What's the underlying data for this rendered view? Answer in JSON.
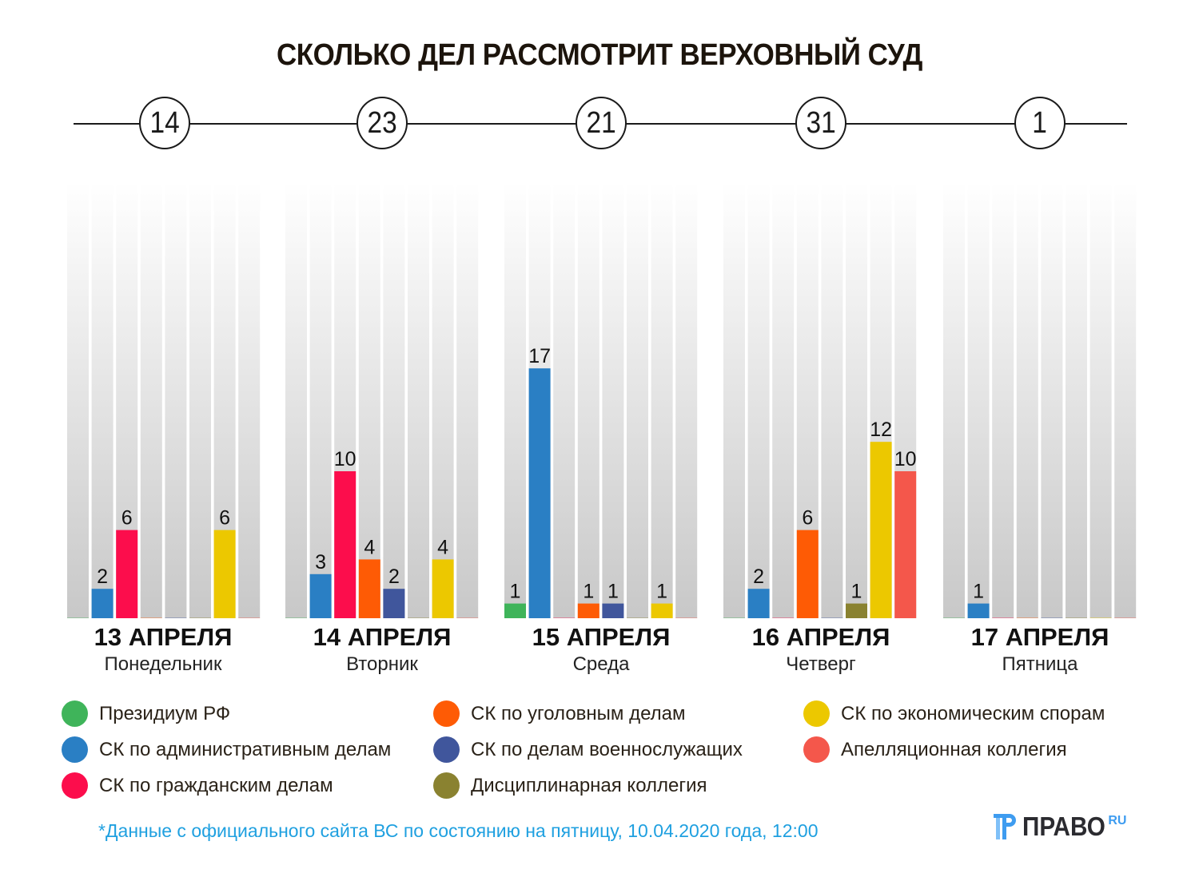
{
  "title": "СКОЛЬКО ДЕЛ РАССМОТРИТ ВЕРХОВНЫЙ СУД",
  "totals": [
    "14",
    "23",
    "21",
    "31",
    "1"
  ],
  "days": [
    {
      "date": "13 АПРЕЛЯ",
      "weekday": "Понедельник"
    },
    {
      "date": "14 АПРЕЛЯ",
      "weekday": "Вторник"
    },
    {
      "date": "15 АПРЕЛЯ",
      "weekday": "Среда"
    },
    {
      "date": "16 АПРЕЛЯ",
      "weekday": "Четверг"
    },
    {
      "date": "17 АПРЕЛЯ",
      "weekday": "Пятница"
    }
  ],
  "legend": [
    {
      "label": "Президиум РФ",
      "color": "#3fb45a"
    },
    {
      "label": "СК по административным делам",
      "color": "#2a7fc4"
    },
    {
      "label": "СК по гражданским делам",
      "color": "#fc0d4c"
    },
    {
      "label": "СК по уголовным делам",
      "color": "#fe5b05"
    },
    {
      "label": "СК по делам военнослужащих",
      "color": "#40569c"
    },
    {
      "label": "Дисциплинарная коллегия",
      "color": "#8a8230"
    },
    {
      "label": "СК по экономическим спорам",
      "color": "#ecc800"
    },
    {
      "label": "Апелляционная коллегия",
      "color": "#f4574b"
    }
  ],
  "footnote": "*Данные с официального сайта ВС по состоянию на пятницу, 10.04.2020 года, 12:00",
  "logo": {
    "text": "ПРАВО",
    "suffix": "RU"
  },
  "chart_data": {
    "type": "bar",
    "title": "СКОЛЬКО ДЕЛ РАССМОТРИТ ВЕРХОВНЫЙ СУД",
    "categories": [
      "13 АПРЕЛЯ",
      "14 АПРЕЛЯ",
      "15 АПРЕЛЯ",
      "16 АПРЕЛЯ",
      "17 АПРЕЛЯ"
    ],
    "ylim": [
      0,
      29
    ],
    "series": [
      {
        "name": "Президиум РФ",
        "values": [
          0,
          0,
          1,
          0,
          0
        ]
      },
      {
        "name": "СК по административным делам",
        "values": [
          2,
          3,
          17,
          2,
          1
        ]
      },
      {
        "name": "СК по гражданским делам",
        "values": [
          6,
          10,
          0,
          0,
          0
        ]
      },
      {
        "name": "СК по уголовным делам",
        "values": [
          0,
          4,
          1,
          6,
          0
        ]
      },
      {
        "name": "СК по делам военнослужащих",
        "values": [
          0,
          2,
          1,
          0,
          0
        ]
      },
      {
        "name": "Дисциплинарная коллегия",
        "values": [
          0,
          0,
          0,
          1,
          0
        ]
      },
      {
        "name": "СК по экономическим спорам",
        "values": [
          6,
          4,
          1,
          12,
          0
        ]
      },
      {
        "name": "Апелляционная коллегия",
        "values": [
          0,
          0,
          0,
          10,
          0
        ]
      }
    ]
  }
}
